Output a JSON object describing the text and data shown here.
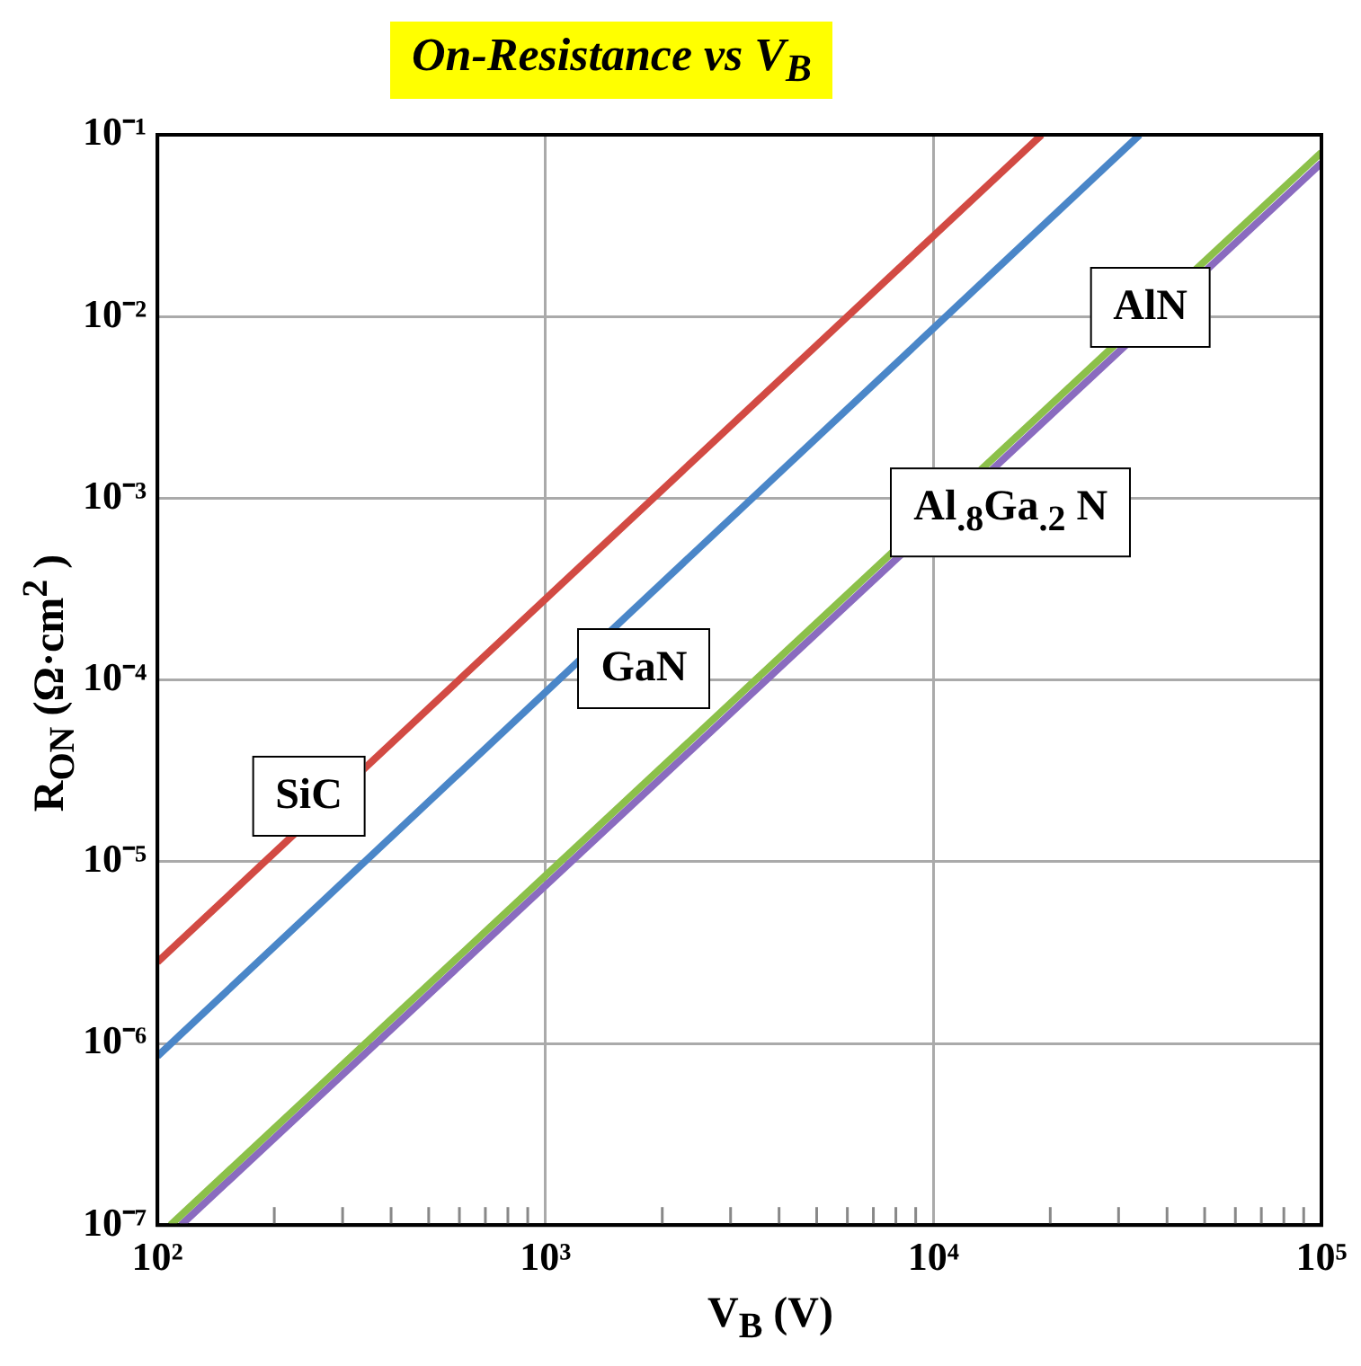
{
  "chart_data": {
    "type": "line",
    "title": "On-Resistance vs V$_{B}$",
    "xlabel": "V$_{B}$ (V)",
    "ylabel": "R$_{ON}$ (Ω·cm$^{2}$ )",
    "log": "xy",
    "grid": true,
    "xlim": [
      100,
      100000
    ],
    "ylim": [
      1e-07,
      0.1
    ],
    "xticks": [
      {
        "value": 100,
        "label": "10²"
      },
      {
        "value": 200,
        "label": null
      },
      {
        "value": 300,
        "label": null
      },
      {
        "value": 400,
        "label": null
      },
      {
        "value": 500,
        "label": null
      },
      {
        "value": 600,
        "label": null
      },
      {
        "value": 700,
        "label": null
      },
      {
        "value": 800,
        "label": null
      },
      {
        "value": 900,
        "label": null
      },
      {
        "value": 1000,
        "label": "10³"
      },
      {
        "value": 2000,
        "label": null
      },
      {
        "value": 3000,
        "label": null
      },
      {
        "value": 4000,
        "label": null
      },
      {
        "value": 5000,
        "label": null
      },
      {
        "value": 6000,
        "label": null
      },
      {
        "value": 7000,
        "label": null
      },
      {
        "value": 8000,
        "label": null
      },
      {
        "value": 9000,
        "label": null
      },
      {
        "value": 10000,
        "label": "10⁴"
      },
      {
        "value": 20000,
        "label": null
      },
      {
        "value": 30000,
        "label": null
      },
      {
        "value": 40000,
        "label": null
      },
      {
        "value": 50000,
        "label": null
      },
      {
        "value": 60000,
        "label": null
      },
      {
        "value": 70000,
        "label": null
      },
      {
        "value": 80000,
        "label": null
      },
      {
        "value": 90000,
        "label": null
      },
      {
        "value": 100000,
        "label": "10⁵"
      }
    ],
    "yticks": [
      {
        "value": 1e-07,
        "label": "10⁻⁷"
      },
      {
        "value": 1e-06,
        "label": "10⁻⁶"
      },
      {
        "value": 1e-05,
        "label": "10⁻⁵"
      },
      {
        "value": 0.0001,
        "label": "10⁻⁴"
      },
      {
        "value": 0.001,
        "label": "10⁻³"
      },
      {
        "value": 0.01,
        "label": "10⁻²"
      },
      {
        "value": 0.1,
        "label": "10⁻¹"
      }
    ],
    "series": [
      {
        "name": "SiC",
        "color": "#d24a43",
        "x": [
          100,
          19000
        ],
        "values": [
          2.8e-06,
          0.1
        ]
      },
      {
        "name": "GaN",
        "color": "#4a86c8",
        "x": [
          100,
          34000
        ],
        "values": [
          8.5e-07,
          0.1
        ]
      },
      {
        "name": "Al$_{.8}$Ga$_{.2}$ N",
        "color": "#8cc04a",
        "x": [
          108,
          100000
        ],
        "values": [
          1e-07,
          0.08
        ]
      },
      {
        "name": "AlN",
        "color": "#8a6bbf",
        "x": [
          115,
          100000
        ],
        "values": [
          1e-07,
          0.07
        ]
      }
    ]
  }
}
